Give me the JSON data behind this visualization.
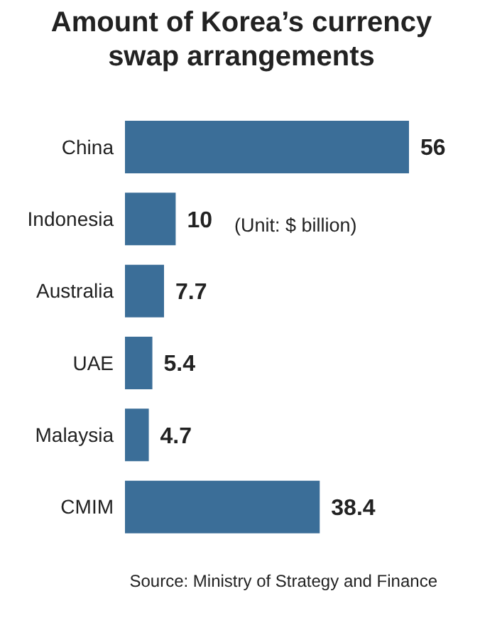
{
  "chart_data": {
    "type": "bar",
    "orientation": "horizontal",
    "title": "Amount of Korea’s currency swap arrangements",
    "categories": [
      "China",
      "Indonesia",
      "Australia",
      "UAE",
      "Malaysia",
      "CMIM"
    ],
    "values": [
      56,
      10,
      7.7,
      5.4,
      4.7,
      38.4
    ],
    "color": "#3b6e98",
    "data_labels": true,
    "grid": false,
    "annotations": [
      "(Unit: $ billion)",
      "Source: Ministry of Strategy and Finance"
    ]
  }
}
